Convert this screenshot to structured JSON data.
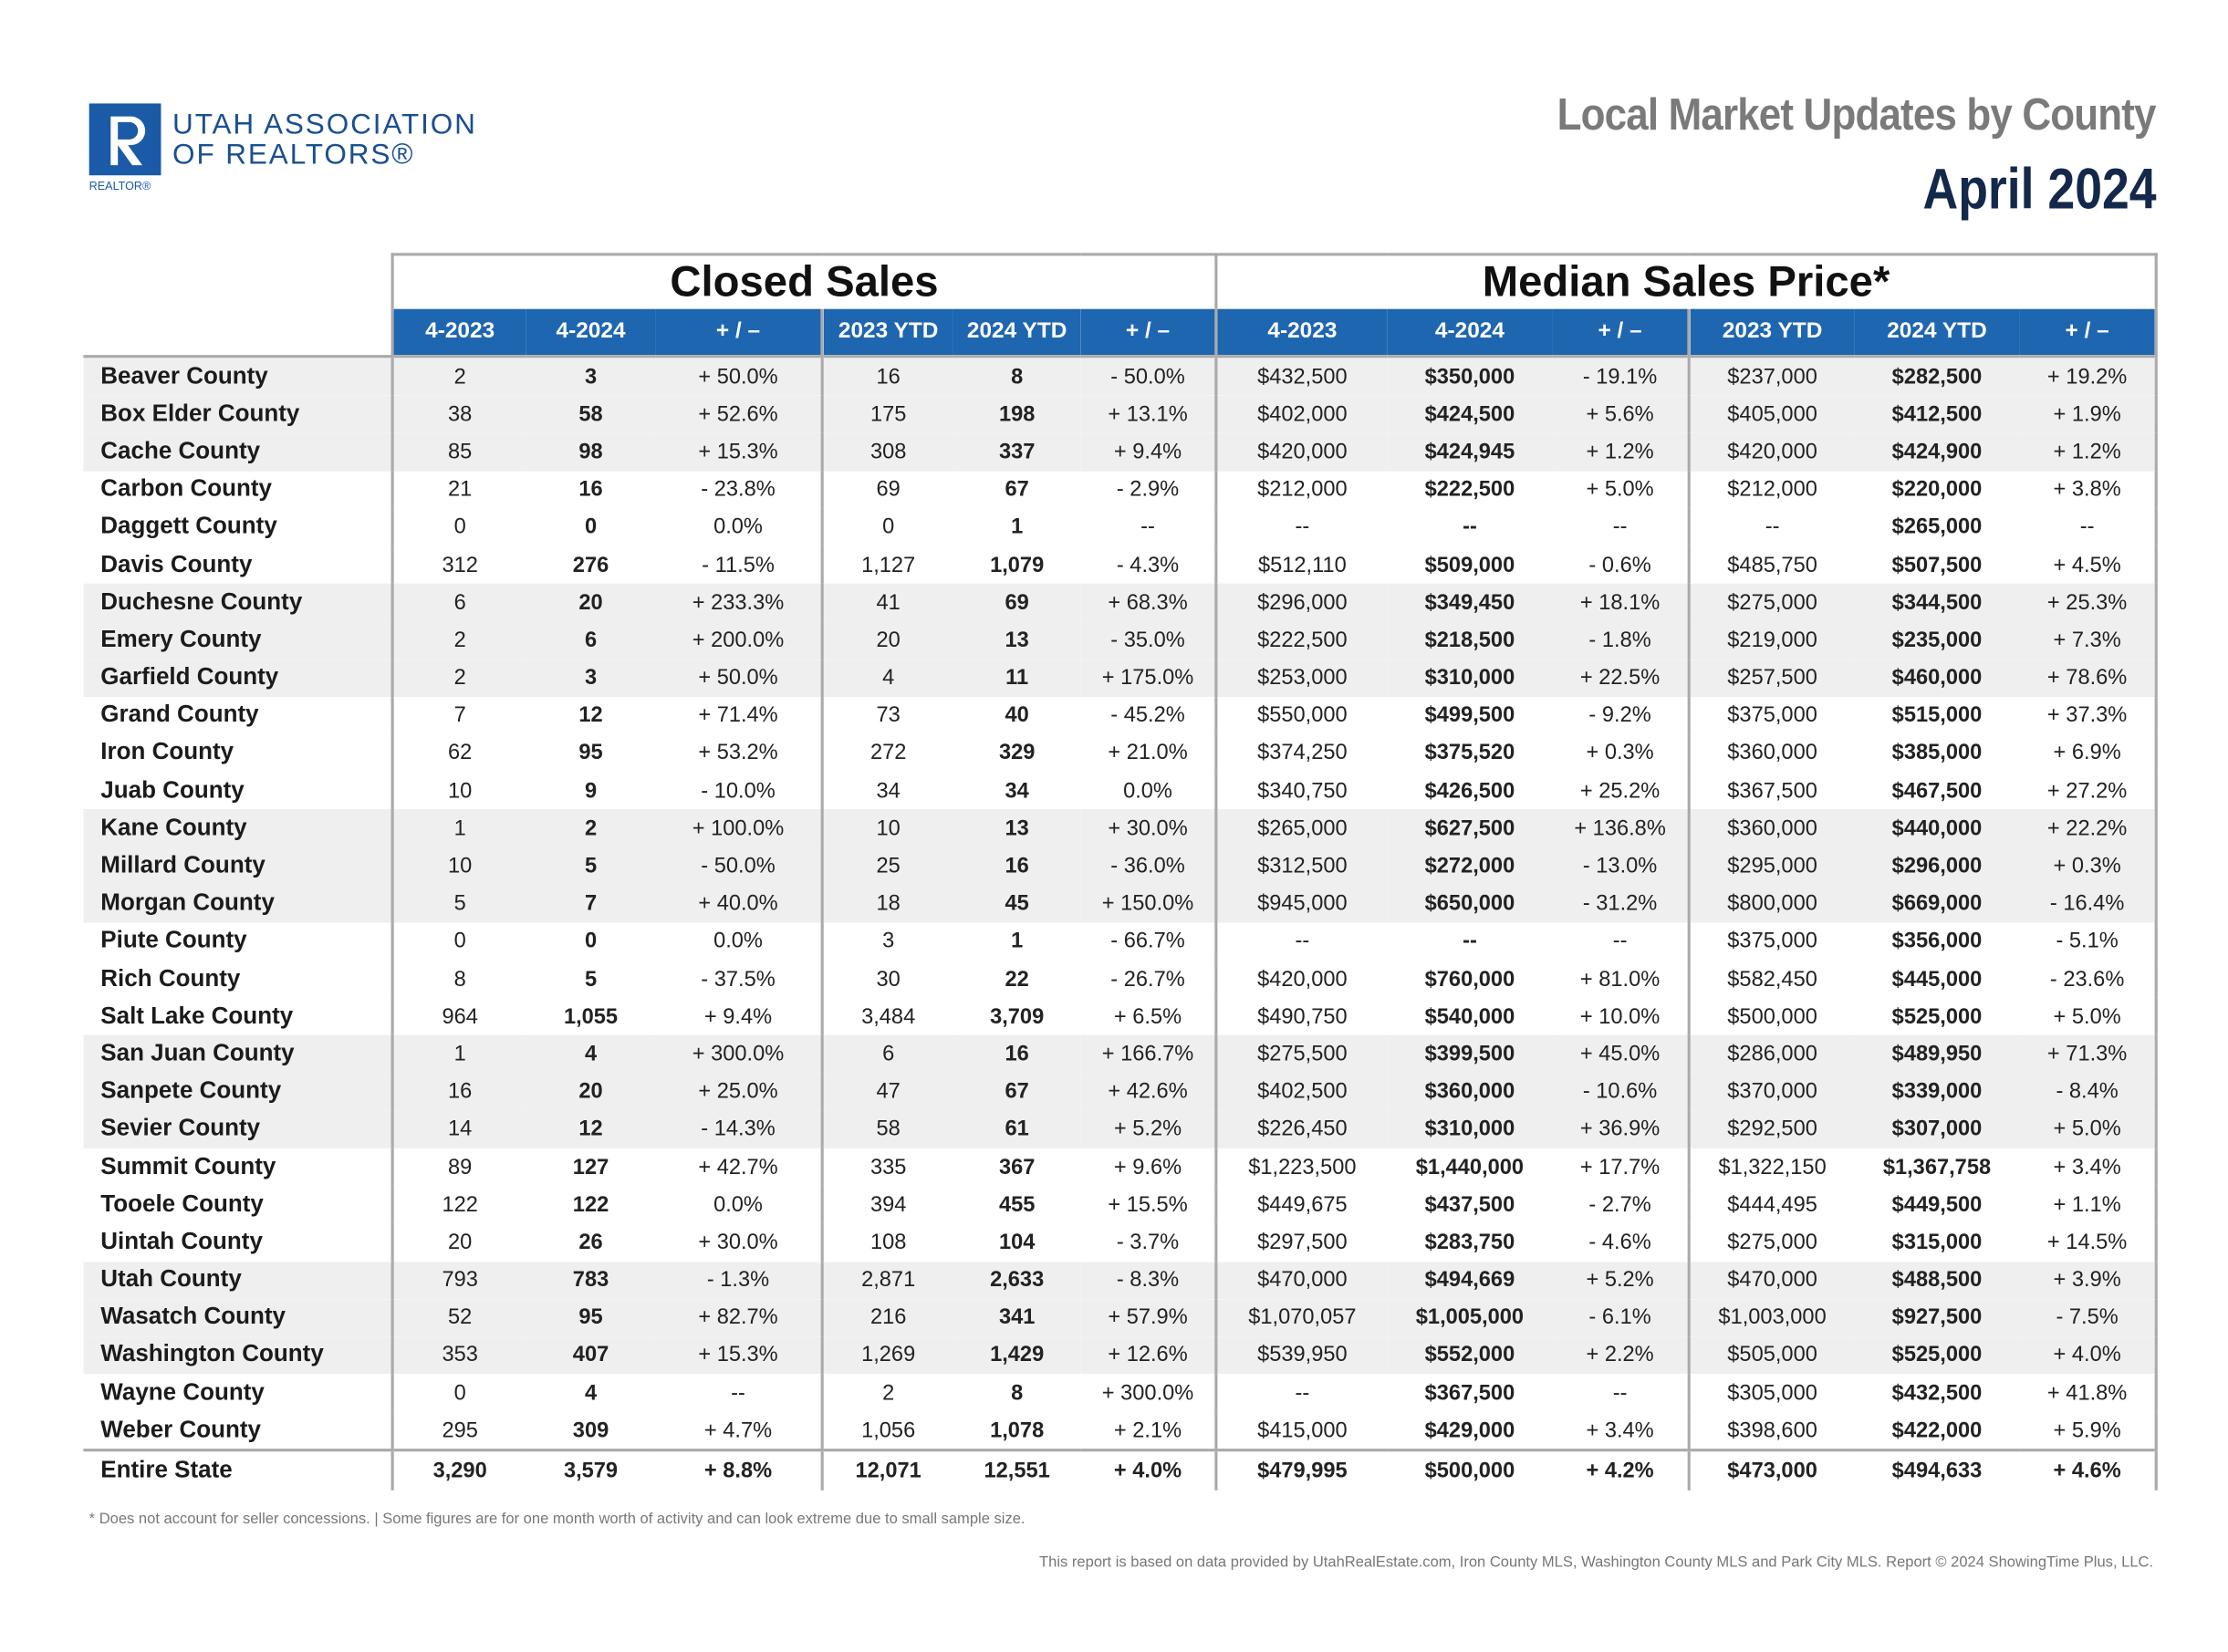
{
  "header": {
    "logo": {
      "line1": "UTAH ASSOCIATION",
      "line2": "OF REALTORS®",
      "mark": "REALTOR®"
    },
    "title": "Local Market Updates by County",
    "period": "April 2024"
  },
  "table": {
    "groups": [
      {
        "title": "Closed Sales",
        "columns": [
          "4-2023",
          "4-2024",
          "+ / –",
          "2023 YTD",
          "2024 YTD",
          "+ / –"
        ]
      },
      {
        "title": "Median Sales Price*",
        "columns": [
          "4-2023",
          "4-2024",
          "+ / –",
          "2023 YTD",
          "2024 YTD",
          "+ / –"
        ]
      }
    ],
    "rows": [
      [
        "Beaver County",
        "2",
        "3",
        "+ 50.0%",
        "16",
        "8",
        "- 50.0%",
        "$432,500",
        "$350,000",
        "- 19.1%",
        "$237,000",
        "$282,500",
        "+ 19.2%"
      ],
      [
        "Box Elder County",
        "38",
        "58",
        "+ 52.6%",
        "175",
        "198",
        "+ 13.1%",
        "$402,000",
        "$424,500",
        "+ 5.6%",
        "$405,000",
        "$412,500",
        "+ 1.9%"
      ],
      [
        "Cache County",
        "85",
        "98",
        "+ 15.3%",
        "308",
        "337",
        "+ 9.4%",
        "$420,000",
        "$424,945",
        "+ 1.2%",
        "$420,000",
        "$424,900",
        "+ 1.2%"
      ],
      [
        "Carbon County",
        "21",
        "16",
        "- 23.8%",
        "69",
        "67",
        "- 2.9%",
        "$212,000",
        "$222,500",
        "+ 5.0%",
        "$212,000",
        "$220,000",
        "+ 3.8%"
      ],
      [
        "Daggett County",
        "0",
        "0",
        "0.0%",
        "0",
        "1",
        "--",
        "--",
        "--",
        "--",
        "--",
        "$265,000",
        "--"
      ],
      [
        "Davis County",
        "312",
        "276",
        "- 11.5%",
        "1,127",
        "1,079",
        "- 4.3%",
        "$512,110",
        "$509,000",
        "- 0.6%",
        "$485,750",
        "$507,500",
        "+ 4.5%"
      ],
      [
        "Duchesne County",
        "6",
        "20",
        "+ 233.3%",
        "41",
        "69",
        "+ 68.3%",
        "$296,000",
        "$349,450",
        "+ 18.1%",
        "$275,000",
        "$344,500",
        "+ 25.3%"
      ],
      [
        "Emery County",
        "2",
        "6",
        "+ 200.0%",
        "20",
        "13",
        "- 35.0%",
        "$222,500",
        "$218,500",
        "- 1.8%",
        "$219,000",
        "$235,000",
        "+ 7.3%"
      ],
      [
        "Garfield County",
        "2",
        "3",
        "+ 50.0%",
        "4",
        "11",
        "+ 175.0%",
        "$253,000",
        "$310,000",
        "+ 22.5%",
        "$257,500",
        "$460,000",
        "+ 78.6%"
      ],
      [
        "Grand County",
        "7",
        "12",
        "+ 71.4%",
        "73",
        "40",
        "- 45.2%",
        "$550,000",
        "$499,500",
        "- 9.2%",
        "$375,000",
        "$515,000",
        "+ 37.3%"
      ],
      [
        "Iron County",
        "62",
        "95",
        "+ 53.2%",
        "272",
        "329",
        "+ 21.0%",
        "$374,250",
        "$375,520",
        "+ 0.3%",
        "$360,000",
        "$385,000",
        "+ 6.9%"
      ],
      [
        "Juab County",
        "10",
        "9",
        "- 10.0%",
        "34",
        "34",
        "0.0%",
        "$340,750",
        "$426,500",
        "+ 25.2%",
        "$367,500",
        "$467,500",
        "+ 27.2%"
      ],
      [
        "Kane County",
        "1",
        "2",
        "+ 100.0%",
        "10",
        "13",
        "+ 30.0%",
        "$265,000",
        "$627,500",
        "+ 136.8%",
        "$360,000",
        "$440,000",
        "+ 22.2%"
      ],
      [
        "Millard County",
        "10",
        "5",
        "- 50.0%",
        "25",
        "16",
        "- 36.0%",
        "$312,500",
        "$272,000",
        "- 13.0%",
        "$295,000",
        "$296,000",
        "+ 0.3%"
      ],
      [
        "Morgan County",
        "5",
        "7",
        "+ 40.0%",
        "18",
        "45",
        "+ 150.0%",
        "$945,000",
        "$650,000",
        "- 31.2%",
        "$800,000",
        "$669,000",
        "- 16.4%"
      ],
      [
        "Piute County",
        "0",
        "0",
        "0.0%",
        "3",
        "1",
        "- 66.7%",
        "--",
        "--",
        "--",
        "$375,000",
        "$356,000",
        "- 5.1%"
      ],
      [
        "Rich County",
        "8",
        "5",
        "- 37.5%",
        "30",
        "22",
        "- 26.7%",
        "$420,000",
        "$760,000",
        "+ 81.0%",
        "$582,450",
        "$445,000",
        "- 23.6%"
      ],
      [
        "Salt Lake County",
        "964",
        "1,055",
        "+ 9.4%",
        "3,484",
        "3,709",
        "+ 6.5%",
        "$490,750",
        "$540,000",
        "+ 10.0%",
        "$500,000",
        "$525,000",
        "+ 5.0%"
      ],
      [
        "San Juan County",
        "1",
        "4",
        "+ 300.0%",
        "6",
        "16",
        "+ 166.7%",
        "$275,500",
        "$399,500",
        "+ 45.0%",
        "$286,000",
        "$489,950",
        "+ 71.3%"
      ],
      [
        "Sanpete County",
        "16",
        "20",
        "+ 25.0%",
        "47",
        "67",
        "+ 42.6%",
        "$402,500",
        "$360,000",
        "- 10.6%",
        "$370,000",
        "$339,000",
        "- 8.4%"
      ],
      [
        "Sevier County",
        "14",
        "12",
        "- 14.3%",
        "58",
        "61",
        "+ 5.2%",
        "$226,450",
        "$310,000",
        "+ 36.9%",
        "$292,500",
        "$307,000",
        "+ 5.0%"
      ],
      [
        "Summit County",
        "89",
        "127",
        "+ 42.7%",
        "335",
        "367",
        "+ 9.6%",
        "$1,223,500",
        "$1,440,000",
        "+ 17.7%",
        "$1,322,150",
        "$1,367,758",
        "+ 3.4%"
      ],
      [
        "Tooele County",
        "122",
        "122",
        "0.0%",
        "394",
        "455",
        "+ 15.5%",
        "$449,675",
        "$437,500",
        "- 2.7%",
        "$444,495",
        "$449,500",
        "+ 1.1%"
      ],
      [
        "Uintah County",
        "20",
        "26",
        "+ 30.0%",
        "108",
        "104",
        "- 3.7%",
        "$297,500",
        "$283,750",
        "- 4.6%",
        "$275,000",
        "$315,000",
        "+ 14.5%"
      ],
      [
        "Utah County",
        "793",
        "783",
        "- 1.3%",
        "2,871",
        "2,633",
        "- 8.3%",
        "$470,000",
        "$494,669",
        "+ 5.2%",
        "$470,000",
        "$488,500",
        "+ 3.9%"
      ],
      [
        "Wasatch County",
        "52",
        "95",
        "+ 82.7%",
        "216",
        "341",
        "+ 57.9%",
        "$1,070,057",
        "$1,005,000",
        "- 6.1%",
        "$1,003,000",
        "$927,500",
        "- 7.5%"
      ],
      [
        "Washington County",
        "353",
        "407",
        "+ 15.3%",
        "1,269",
        "1,429",
        "+ 12.6%",
        "$539,950",
        "$552,000",
        "+ 2.2%",
        "$505,000",
        "$525,000",
        "+ 4.0%"
      ],
      [
        "Wayne County",
        "0",
        "4",
        "--",
        "2",
        "8",
        "+ 300.0%",
        "--",
        "$367,500",
        "--",
        "$305,000",
        "$432,500",
        "+ 41.8%"
      ],
      [
        "Weber County",
        "295",
        "309",
        "+ 4.7%",
        "1,056",
        "1,078",
        "+ 2.1%",
        "$415,000",
        "$429,000",
        "+ 3.4%",
        "$398,600",
        "$422,000",
        "+ 5.9%"
      ]
    ],
    "total": [
      "Entire State",
      "3,290",
      "3,579",
      "+ 8.8%",
      "12,071",
      "12,551",
      "+ 4.0%",
      "$479,995",
      "$500,000",
      "+ 4.2%",
      "$473,000",
      "$494,633",
      "+ 4.6%"
    ]
  },
  "footer": {
    "note": "* Does not account for seller concessions. | Some figures are for one month worth of activity and can look extreme due to small sample size.",
    "source": "This report is based on data provided by UtahRealEstate.com, Iron County MLS, Washington County MLS and Park City MLS. Report © 2024 ShowingTime Plus, LLC."
  }
}
